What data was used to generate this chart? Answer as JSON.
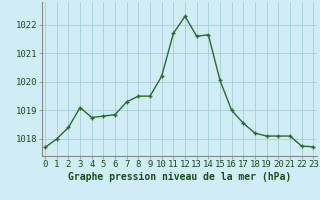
{
  "hours": [
    0,
    1,
    2,
    3,
    4,
    5,
    6,
    7,
    8,
    9,
    10,
    11,
    12,
    13,
    14,
    15,
    16,
    17,
    18,
    19,
    20,
    21,
    22,
    23
  ],
  "pressure": [
    1017.7,
    1018.0,
    1018.4,
    1019.1,
    1018.75,
    1018.8,
    1018.85,
    1019.3,
    1019.5,
    1019.5,
    1020.2,
    1021.7,
    1022.3,
    1021.6,
    1021.65,
    1020.05,
    1019.0,
    1018.55,
    1018.2,
    1018.1,
    1018.1,
    1018.1,
    1017.75,
    1017.72
  ],
  "line_color": "#2a6b2a",
  "marker_color": "#2a6b2a",
  "bg_color": "#d0edf5",
  "grid_color_major": "#a8cdd8",
  "grid_color_minor": "#b8dae6",
  "axis_label_color": "#1a4d1a",
  "spine_color": "#888888",
  "title_text": "Graphe pression niveau de la mer (hPa)",
  "ylim_min": 1017.4,
  "ylim_max": 1022.8,
  "ytick_values": [
    1018,
    1019,
    1020,
    1021,
    1022
  ],
  "tick_fontsize": 6.5,
  "xlabel_fontsize": 7.0,
  "marker_size": 2.5,
  "linewidth": 1.0
}
